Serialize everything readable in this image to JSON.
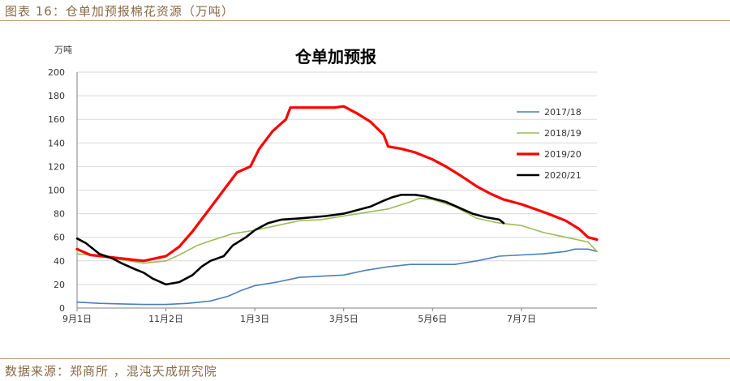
{
  "figure": {
    "caption": "图表 16：仓单加预报棉花资源（万吨）",
    "source": "数据来源：郑商所 ，混沌天成研究院"
  },
  "chart_data": {
    "type": "line",
    "title": "仓单加预报",
    "ylabel": "万吨",
    "xlabel": "",
    "ylim": [
      0,
      200
    ],
    "yticks": [
      0,
      20,
      40,
      60,
      80,
      100,
      120,
      140,
      160,
      180,
      200
    ],
    "xlim": [
      0,
      11.7
    ],
    "x_ticks": [
      {
        "label": "9月1日",
        "x": 0
      },
      {
        "label": "11月2日",
        "x": 2
      },
      {
        "label": "1月3日",
        "x": 4
      },
      {
        "label": "3月5日",
        "x": 6
      },
      {
        "label": "5月6日",
        "x": 8
      },
      {
        "label": "7月7日",
        "x": 10
      }
    ],
    "x_unit_note": "x = months since 9月1日",
    "grid": "horizontal",
    "legend_position": "right",
    "series": [
      {
        "name": "2017/18",
        "color": "#4a7ebb",
        "width": 1.6,
        "points": [
          [
            0,
            5
          ],
          [
            0.5,
            4
          ],
          [
            1,
            3.5
          ],
          [
            1.5,
            3
          ],
          [
            2,
            3
          ],
          [
            2.5,
            4
          ],
          [
            3,
            6
          ],
          [
            3.4,
            10
          ],
          [
            3.7,
            15
          ],
          [
            4,
            19
          ],
          [
            4.5,
            22
          ],
          [
            5,
            26
          ],
          [
            5.5,
            27
          ],
          [
            6,
            28
          ],
          [
            6.5,
            32
          ],
          [
            7,
            35
          ],
          [
            7.5,
            37
          ],
          [
            8,
            37
          ],
          [
            8.5,
            37
          ],
          [
            9,
            40
          ],
          [
            9.5,
            44
          ],
          [
            10,
            45
          ],
          [
            10.5,
            46
          ],
          [
            11,
            48
          ],
          [
            11.2,
            50
          ],
          [
            11.5,
            50
          ],
          [
            11.7,
            48
          ]
        ]
      },
      {
        "name": "2018/19",
        "color": "#9bbb59",
        "width": 1.6,
        "points": [
          [
            0,
            46
          ],
          [
            0.5,
            44
          ],
          [
            1,
            41
          ],
          [
            1.5,
            38
          ],
          [
            2,
            40
          ],
          [
            2.3,
            45
          ],
          [
            2.7,
            53
          ],
          [
            3,
            57
          ],
          [
            3.5,
            63
          ],
          [
            4,
            66
          ],
          [
            4.5,
            70
          ],
          [
            5,
            74
          ],
          [
            5.5,
            75
          ],
          [
            6,
            78
          ],
          [
            6.5,
            81
          ],
          [
            7,
            84
          ],
          [
            7.5,
            90
          ],
          [
            7.7,
            93
          ],
          [
            8,
            92
          ],
          [
            8.5,
            86
          ],
          [
            9,
            76
          ],
          [
            9.5,
            72
          ],
          [
            10,
            70
          ],
          [
            10.5,
            64
          ],
          [
            11,
            60
          ],
          [
            11.5,
            56
          ],
          [
            11.7,
            48
          ]
        ]
      },
      {
        "name": "2019/20",
        "color": "#ff0000",
        "width": 3.2,
        "points": [
          [
            0,
            50
          ],
          [
            0.3,
            45
          ],
          [
            1,
            42
          ],
          [
            1.5,
            40
          ],
          [
            2,
            44
          ],
          [
            2.3,
            52
          ],
          [
            2.6,
            65
          ],
          [
            3,
            85
          ],
          [
            3.3,
            100
          ],
          [
            3.6,
            115
          ],
          [
            3.9,
            120
          ],
          [
            4.1,
            135
          ],
          [
            4.4,
            150
          ],
          [
            4.7,
            160
          ],
          [
            4.8,
            170
          ],
          [
            5,
            170
          ],
          [
            5.5,
            170
          ],
          [
            5.8,
            170
          ],
          [
            6,
            171
          ],
          [
            6.3,
            165
          ],
          [
            6.6,
            158
          ],
          [
            6.9,
            147
          ],
          [
            7,
            137
          ],
          [
            7.3,
            135
          ],
          [
            7.6,
            132
          ],
          [
            8,
            126
          ],
          [
            8.3,
            120
          ],
          [
            8.6,
            113
          ],
          [
            9,
            103
          ],
          [
            9.3,
            97
          ],
          [
            9.6,
            92
          ],
          [
            10,
            88
          ],
          [
            10.3,
            84
          ],
          [
            10.6,
            80
          ],
          [
            11,
            74
          ],
          [
            11.3,
            67
          ],
          [
            11.5,
            60
          ],
          [
            11.7,
            58
          ]
        ]
      },
      {
        "name": "2020/21",
        "color": "#000000",
        "width": 2.6,
        "points": [
          [
            0,
            59
          ],
          [
            0.2,
            55
          ],
          [
            0.5,
            46
          ],
          [
            0.8,
            42
          ],
          [
            1,
            38
          ],
          [
            1.3,
            33
          ],
          [
            1.5,
            30
          ],
          [
            1.7,
            25
          ],
          [
            2,
            20
          ],
          [
            2.3,
            22
          ],
          [
            2.6,
            28
          ],
          [
            2.8,
            35
          ],
          [
            3,
            40
          ],
          [
            3.3,
            44
          ],
          [
            3.5,
            53
          ],
          [
            3.8,
            60
          ],
          [
            4,
            66
          ],
          [
            4.3,
            72
          ],
          [
            4.6,
            75
          ],
          [
            5,
            76
          ],
          [
            5.3,
            77
          ],
          [
            5.6,
            78
          ],
          [
            6,
            80
          ],
          [
            6.3,
            83
          ],
          [
            6.6,
            86
          ],
          [
            6.9,
            91
          ],
          [
            7.1,
            94
          ],
          [
            7.3,
            96
          ],
          [
            7.6,
            96
          ],
          [
            7.8,
            95
          ],
          [
            8,
            93
          ],
          [
            8.3,
            90
          ],
          [
            8.6,
            85
          ],
          [
            8.9,
            80
          ],
          [
            9.2,
            77
          ],
          [
            9.5,
            75
          ],
          [
            9.6,
            72
          ]
        ]
      }
    ]
  }
}
